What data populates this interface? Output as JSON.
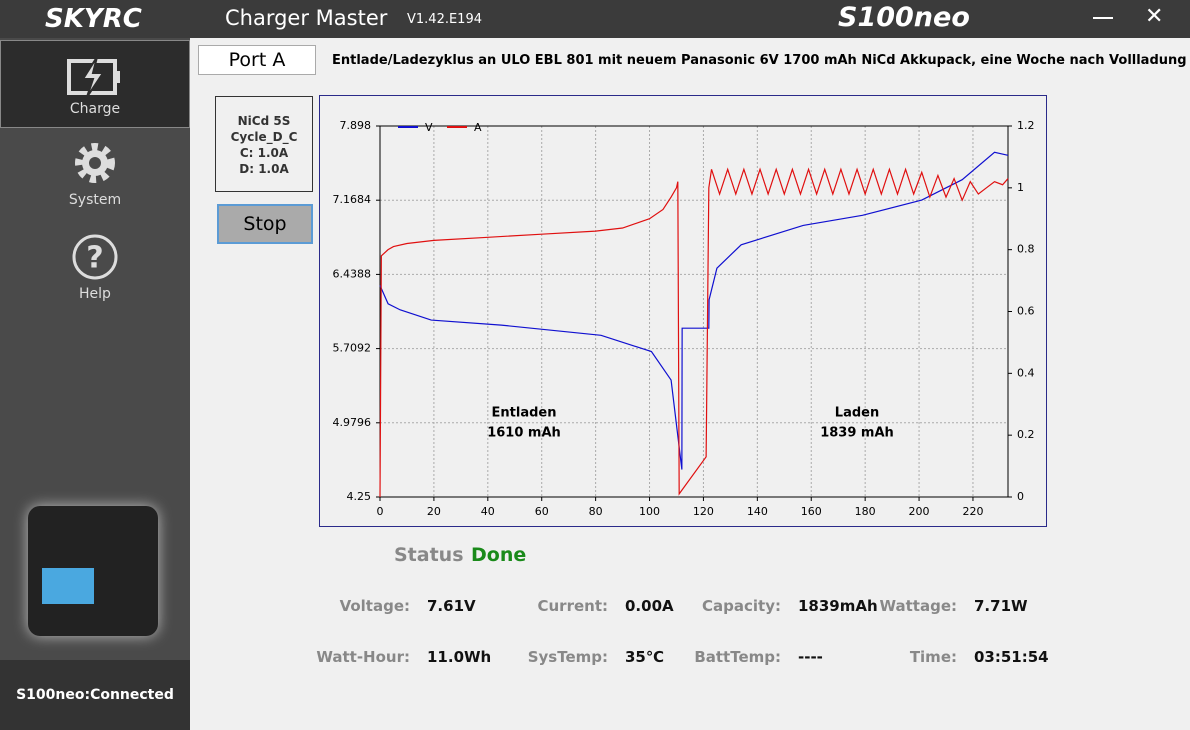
{
  "header": {
    "logo": "SKYRC",
    "app": "Charger Master",
    "version": "V1.42.E194",
    "model": "S100neo"
  },
  "sidebar": {
    "items": [
      "Charge",
      "System",
      "Help"
    ],
    "status": "S100neo:Connected"
  },
  "port_tab": "Port A",
  "description": "Entlade/Ladezyklus an ULO EBL 801 mit neuem Panasonic 6V 1700 mAh NiCd Akkupack, eine Woche nach Vollladung",
  "info": [
    "NiCd 5S",
    "Cycle_D_C",
    "C: 1.0A",
    "D: 1.0A"
  ],
  "button": "Stop",
  "status": {
    "label": "Status",
    "value": "Done"
  },
  "readings": [
    {
      "label": "Voltage:",
      "value": "7.61V"
    },
    {
      "label": "Current:",
      "value": "0.00A"
    },
    {
      "label": "Capacity:",
      "value": "1839mAh"
    },
    {
      "label": "Wattage:",
      "value": "7.71W"
    },
    {
      "label": "Watt-Hour:",
      "value": "11.0Wh"
    },
    {
      "label": "SysTemp:",
      "value": "35℃"
    },
    {
      "label": "BattTemp:",
      "value": "----"
    },
    {
      "label": "Time:",
      "value": "03:51:54"
    }
  ],
  "chart_data": {
    "type": "line",
    "grid": true,
    "legend": "top-left",
    "annotations": [
      "Entladen",
      "1610 mAh",
      "Laden",
      "1839 mAh"
    ],
    "xlim": [
      0,
      233
    ],
    "xticks": [
      0,
      20,
      40,
      60,
      80,
      100,
      120,
      140,
      160,
      180,
      200,
      220
    ],
    "ylim": [
      4.25,
      7.898
    ],
    "yticks": [
      4.25,
      4.9796,
      5.7092,
      6.4388,
      7.1684,
      7.898
    ],
    "y2lim": [
      0,
      1.2
    ],
    "y2ticks": [
      0,
      0.2,
      0.4,
      0.6,
      0.8,
      1,
      1.2
    ],
    "series": [
      {
        "name": "V",
        "color": "#1010d0",
        "x": [
          0,
          3,
          7.5,
          19,
          45,
          82,
          100.7,
          108,
          112,
          112.1,
          122,
          122.1,
          125,
          134,
          157,
          179,
          201,
          216,
          228,
          233
        ],
        "values": [
          6.33,
          6.15,
          6.09,
          5.99,
          5.94,
          5.84,
          5.68,
          5.4,
          4.52,
          5.91,
          5.91,
          6.19,
          6.5,
          6.73,
          6.92,
          7.02,
          7.17,
          7.37,
          7.64,
          7.61
        ]
      },
      {
        "name": "A",
        "color": "#e01010",
        "axis": "y2",
        "x": [
          0,
          0.5,
          3,
          5,
          10,
          20,
          40,
          60,
          80,
          90,
          100,
          105,
          108,
          110,
          110.5,
          111,
          121,
          122,
          123,
          126,
          129,
          132,
          135,
          138,
          141,
          144,
          147,
          150,
          153,
          156,
          159,
          162,
          165,
          168,
          171,
          174,
          177,
          180,
          183,
          186,
          189,
          192,
          195,
          198,
          201,
          204,
          207,
          210,
          213,
          216,
          219,
          222,
          225,
          228,
          231,
          233
        ],
        "values": [
          0,
          0.78,
          0.8,
          0.81,
          0.82,
          0.83,
          0.84,
          0.85,
          0.86,
          0.87,
          0.9,
          0.93,
          0.97,
          1.0,
          1.02,
          0.01,
          0.13,
          1.0,
          1.06,
          0.98,
          1.06,
          0.98,
          1.06,
          0.98,
          1.06,
          0.98,
          1.06,
          0.98,
          1.06,
          0.98,
          1.06,
          0.98,
          1.06,
          0.98,
          1.06,
          0.98,
          1.06,
          0.98,
          1.06,
          0.98,
          1.06,
          0.98,
          1.06,
          0.98,
          1.05,
          0.97,
          1.04,
          0.97,
          1.03,
          0.96,
          1.02,
          0.98,
          1.0,
          1.02,
          1.01,
          1.03
        ]
      }
    ]
  }
}
